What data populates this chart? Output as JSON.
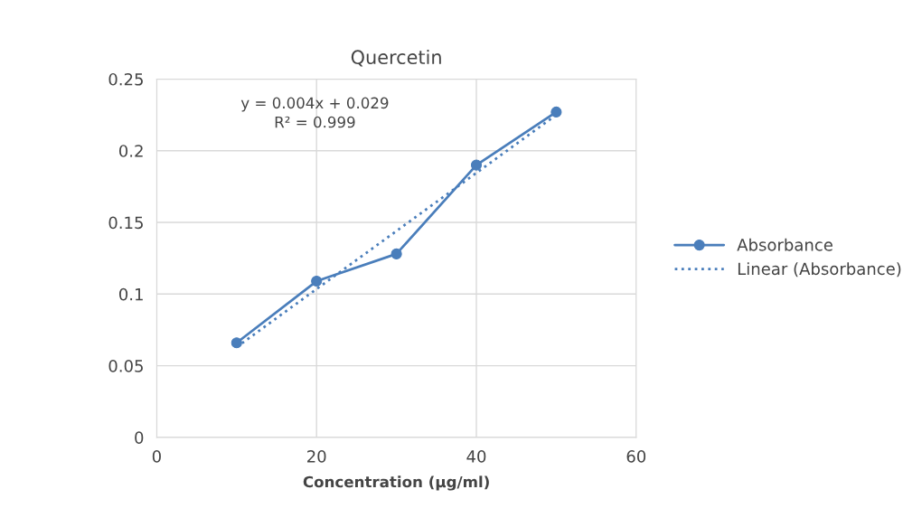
{
  "chart_data": {
    "type": "line",
    "title": "Quercetin",
    "xlabel": "Concentration (µg/ml)",
    "x": [
      10,
      20,
      30,
      40,
      50
    ],
    "series": [
      {
        "name": "Absorbance",
        "color": "#4a7ebb",
        "values": [
          0.066,
          0.109,
          0.128,
          0.19,
          0.227
        ],
        "marker": "circle",
        "line_style": "solid"
      },
      {
        "name": "Linear (Absorbance)",
        "color": "#4a7ebb",
        "x": [
          10,
          50
        ],
        "values": [
          0.063,
          0.225
        ],
        "marker": "none",
        "line_style": "dotted"
      }
    ],
    "xlim": [
      0,
      60
    ],
    "xticks": [
      0,
      20,
      40,
      60
    ],
    "ylim": [
      0,
      0.25
    ],
    "yticks": [
      0,
      0.05,
      0.1,
      0.15,
      0.2,
      0.25
    ],
    "annotations": [
      "y = 0.004x + 0.029\nR² = 0.999"
    ],
    "grid": true,
    "legend": "right"
  }
}
